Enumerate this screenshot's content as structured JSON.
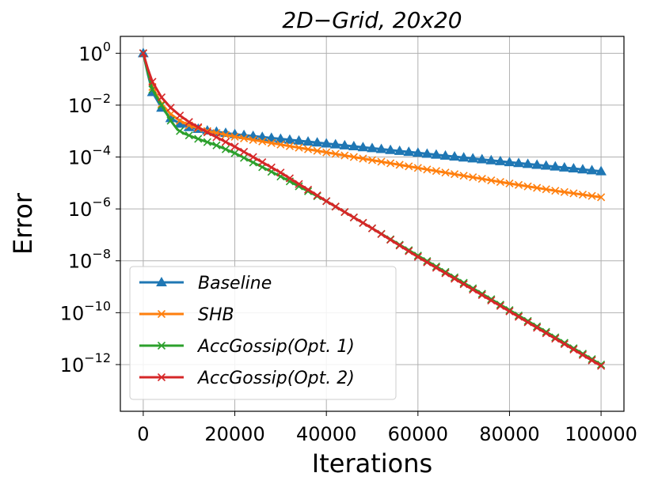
{
  "chart_data": {
    "type": "line",
    "title": "2D−Grid,    20x20",
    "xlabel": "Iterations",
    "ylabel": "Error",
    "yscale": "log",
    "xlim": [
      -5000,
      105000
    ],
    "ylim_exp": [
      -13.8,
      0.65
    ],
    "grid": true,
    "legend_position": "lower-left",
    "xticks": [
      {
        "value": 0,
        "label": "0"
      },
      {
        "value": 20000,
        "label": "20000"
      },
      {
        "value": 40000,
        "label": "40000"
      },
      {
        "value": 60000,
        "label": "60000"
      },
      {
        "value": 80000,
        "label": "80000"
      },
      {
        "value": 100000,
        "label": "100000"
      }
    ],
    "yticks": [
      {
        "exp": 0,
        "base": "10",
        "power": "0"
      },
      {
        "exp": -2,
        "base": "10",
        "power": "−2"
      },
      {
        "exp": -4,
        "base": "10",
        "power": "−4"
      },
      {
        "exp": -6,
        "base": "10",
        "power": "−6"
      },
      {
        "exp": -8,
        "base": "10",
        "power": "−8"
      },
      {
        "exp": -10,
        "base": "10",
        "power": "−10"
      },
      {
        "exp": -12,
        "base": "10",
        "power": "−12"
      }
    ],
    "series": [
      {
        "name": "Baseline",
        "legend_main": "Baseline",
        "legend_paren": "",
        "color": "#1f77b4",
        "marker": "triangle",
        "x": [
          0,
          1000,
          2000,
          4000,
          6000,
          8000,
          10000,
          14000,
          20000,
          30000,
          40000,
          50000,
          60000,
          70000,
          80000,
          90000,
          100000
        ],
        "log10_y": [
          0,
          -0.8,
          -1.5,
          -2.1,
          -2.5,
          -2.72,
          -2.85,
          -2.98,
          -3.12,
          -3.3,
          -3.48,
          -3.66,
          -3.84,
          -4.02,
          -4.2,
          -4.37,
          -4.55
        ]
      },
      {
        "name": "SHB",
        "legend_main": "SHB",
        "legend_paren": "",
        "color": "#ff7f0e",
        "marker": "x",
        "x": [
          0,
          1000,
          2000,
          4000,
          6000,
          8000,
          10000,
          14000,
          20000,
          30000,
          40000,
          50000,
          60000,
          70000,
          80000,
          90000,
          100000
        ],
        "log10_y": [
          0,
          -0.7,
          -1.3,
          -1.95,
          -2.35,
          -2.6,
          -2.78,
          -3.0,
          -3.22,
          -3.52,
          -3.82,
          -4.12,
          -4.42,
          -4.72,
          -5.02,
          -5.3,
          -5.55
        ]
      },
      {
        "name": "AccGossip(Opt.1)",
        "legend_main": "AccGossip",
        "legend_paren": "(Opt. 1)",
        "color": "#2ca02c",
        "marker": "x",
        "x": [
          0,
          1000,
          2000,
          4000,
          6000,
          7500,
          9000,
          12000,
          16000,
          20000,
          30000,
          40000,
          50000,
          60000,
          70000,
          80000,
          90000,
          100000
        ],
        "log10_y": [
          0,
          -0.75,
          -1.4,
          -2.0,
          -2.6,
          -2.95,
          -3.1,
          -3.3,
          -3.55,
          -3.85,
          -4.75,
          -5.7,
          -6.75,
          -7.8,
          -8.85,
          -9.9,
          -10.95,
          -12.0
        ]
      },
      {
        "name": "AccGossip(Opt.2)",
        "legend_main": "AccGossip",
        "legend_paren": "(Opt. 2)",
        "color": "#d62728",
        "marker": "x",
        "x": [
          0,
          1000,
          2000,
          4000,
          6000,
          8000,
          10000,
          14000,
          20000,
          30000,
          40000,
          50000,
          60000,
          70000,
          80000,
          90000,
          100000
        ],
        "log10_y": [
          0,
          -0.6,
          -1.1,
          -1.7,
          -2.1,
          -2.4,
          -2.65,
          -3.05,
          -3.6,
          -4.6,
          -5.7,
          -6.75,
          -7.85,
          -8.9,
          -9.95,
          -11.0,
          -12.05
        ]
      }
    ]
  }
}
